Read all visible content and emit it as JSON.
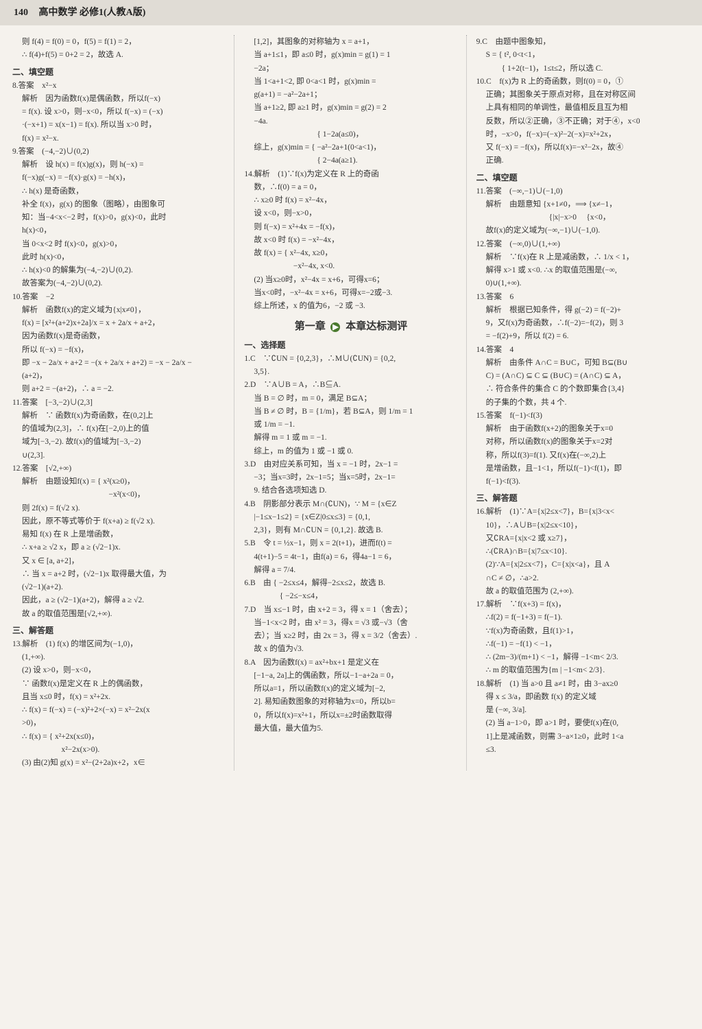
{
  "header": {
    "page_num": "140",
    "title": "高中数学 必修1(人教A版)"
  },
  "col1": {
    "l1": "则 f(4) = f(0) = 0，f(5) = f(1) = 2，",
    "l2": "∴ f(4)+f(5) = 0+2 = 2，故选 A.",
    "s1": "二、填空题",
    "a8": "8.答案　x²−x",
    "a8_1": "解析　因为函数f(x)是偶函数，所以f(−x)",
    "a8_2": "= f(x). 设 x>0，则−x<0，所以 f(−x) = (−x)",
    "a8_3": "·(−x+1) = x(x−1) = f(x). 所以当 x>0 时，",
    "a8_4": "f(x) = x²−x.",
    "a9": "9.答案　(−4,−2)∪(0,2)",
    "a9_1": "解析　设 h(x) = f(x)g(x)，则 h(−x) =",
    "a9_2": "f(−x)g(−x) = −f(x)·g(x) = −h(x)，",
    "a9_3": "∴ h(x) 是奇函数，",
    "a9_4": "补全 f(x)，g(x) 的图象（图略），由图象可",
    "a9_5": "知：当−4<x<−2 时，f(x)>0，g(x)<0，此时",
    "a9_6": "h(x)<0，",
    "a9_7": "当 0<x<2 时 f(x)<0，g(x)>0，",
    "a9_8": "此时 h(x)<0，",
    "a9_9": "∴ h(x)<0 的解集为(−4,−2)∪(0,2).",
    "a9_10": "故答案为(−4,−2)∪(0,2).",
    "a10": "10.答案　−2",
    "a10_1": "解析　函数f(x)的定义域为{x|x≠0}，",
    "a10_2": "f(x) = [x²+(a+2)x+2a]/x = x + 2a/x + a+2，",
    "a10_3": "因为函数f(x)是奇函数，",
    "a10_4": "所以 f(−x) = −f(x)，",
    "a10_5": "即 −x − 2a/x + a+2 = −(x + 2a/x + a+2) = −x − 2a/x −",
    "a10_6": "(a+2)，",
    "a10_7": "则 a+2 = −(a+2)，∴ a = −2.",
    "a11": "11.答案　[−3,−2)∪(2,3]",
    "a11_1": "解析　∵ 函数f(x)为奇函数，在(0,2]上",
    "a11_2": "的值域为(2,3]，∴ f(x)在[−2,0)上的值",
    "a11_3": "域为[−3,−2). 故f(x)的值域为[−3,−2)",
    "a11_4": "∪(2,3].",
    "a12": "12.答案　[√2,+∞)",
    "a12_1": "解析　由题设知f(x) = { x²(x≥0)，",
    "a12_1b": "　　　　　　　　　　　−x²(x<0)，",
    "a12_2": "则 2f(x) = f(√2 x).",
    "a12_3": "因此，原不等式等价于 f(x+a) ≥ f(√2 x).",
    "a12_4": "易知 f(x) 在 R 上是增函数，",
    "a12_5": "∴ x+a ≥ √2 x，即 a ≥ (√2−1)x.",
    "a12_6": "又 x ∈ [a, a+2]，",
    "a12_7": "∴ 当 x = a+2 时，(√2−1)x 取得最大值，为",
    "a12_8": "(√2−1)(a+2).",
    "a12_9": "因此，a ≥ (√2−1)(a+2)，解得 a ≥ √2.",
    "a12_10": "故 a 的取值范围是[√2,+∞).",
    "s2": "三、解答题",
    "a13": "13.解析　(1) f(x) 的增区间为(−1,0)，",
    "a13_1": "(1,+∞).",
    "a13_2": "(2) 设 x>0，则−x<0，",
    "a13_3": "∵ 函数f(x)是定义在 R 上的偶函数，",
    "a13_4": "且当 x≤0 时，f(x) = x²+2x.",
    "a13_5": "∴ f(x) = f(−x) = (−x)²+2×(−x) = x²−2x(x",
    "a13_6": ">0)，",
    "a13_7": "∴ f(x) = { x²+2x(x≤0)，",
    "a13_7b": "　　　　　x²−2x(x>0).",
    "a13_8": "(3) 由(2)知 g(x) = x²−(2+2a)x+2，x∈"
  },
  "col2": {
    "l1": "[1,2]，其图象的对称轴为 x = a+1，",
    "l2": "当 a+1≤1，即 a≤0 时，g(x)min = g(1) = 1",
    "l3": "−2a；",
    "l4": "当 1<a+1<2, 即 0<a<1 时，g(x)min =",
    "l5": "g(a+1) = −a²−2a+1；",
    "l6": "当 a+1≥2, 即 a≥1 时，g(x)min = g(2) = 2",
    "l7": "−4a.",
    "l8": "　　　　　　　　{ 1−2a(a≤0)，",
    "l9": "综上，g(x)min = { −a²−2a+1(0<a<1)，",
    "l10": "　　　　　　　　{ 2−4a(a≥1).",
    "a14": "14.解析　(1)∵f(x)为定义在 R 上的奇函",
    "a14_1": "数，∴f(0) = a = 0，",
    "a14_2": "∴ x≥0 时 f(x) = x²−4x，",
    "a14_3": "设 x<0，则−x>0，",
    "a14_4": "则 f(−x) = x²+4x = −f(x)，",
    "a14_5": "故 x<0 时 f(x) = −x²−4x，",
    "a14_6": "故 f(x) = { x²−4x, x≥0，",
    "a14_6b": "　　　　　−x²−4x, x<0.",
    "a14_7": "(2) 当x≥0时，x²−4x = x+6，可得x=6；",
    "a14_8": "当x<0时，−x²−4x = x+6，可得x=−2或−3.",
    "a14_9": "综上所述，x 的值为6，−2 或 −3.",
    "chapter": "第一章",
    "chapter2": "本章达标测评",
    "s1": "一、选择题",
    "c1": "1.C　∵∁UN = {0,2,3}，∴M∪(∁UN) = {0,2,",
    "c1_1": "3,5}.",
    "c2": "2.D　∵A∪B = A，∴B⊆A.",
    "c2_1": "当 B = ∅ 时，m = 0，满足 B⊆A；",
    "c2_2": "当 B ≠ ∅ 时，B = {1/m}，若 B⊆A，则 1/m = 1",
    "c2_3": "或 1/m = −1.",
    "c2_4": "解得 m = 1 或 m = −1.",
    "c2_5": "综上，m 的值为 1 或 −1 或 0.",
    "c3": "3.D　由对应关系可知，当 x = −1 时，2x−1 =",
    "c3_1": "−3；当x=3时，2x−1=5；当x=5时，2x−1=",
    "c3_2": "9. 结合各选项知选 D.",
    "c4": "4.B　阴影部分表示 M∩(∁UN)，∵ M = {x∈Z",
    "c4_1": "|−1≤x−1≤2} = {x∈Z|0≤x≤3} = {0,1,",
    "c4_2": "2,3}，则有 M∩∁UN = {0,1,2}. 故选 B.",
    "c5": "5.B　令 t = ½x−1，则 x = 2(t+1)，进而f(t) =",
    "c5_1": "4(t+1)−5 = 4t−1，由f(a) = 6，得4a−1 = 6，",
    "c5_2": "解得 a = 7/4.",
    "c6": "6.B　由 { −2≤x≤4，解得−2≤x≤2，故选 B.",
    "c6_1": "　　　 { −2≤−x≤4，",
    "c7": "7.D　当 x≤−1 时，由 x+2 = 3，得 x = 1（舍去）；",
    "c7_1": "当−1<x<2 时，由 x² = 3，得x = √3 或−√3（舍",
    "c7_2": "去）；当 x≥2 时，由 2x = 3，得 x = 3/2（舍去）.",
    "c7_3": "故 x 的值为√3.",
    "c8": "8.A　因为函数f(x) = ax²+bx+1 是定义在",
    "c8_1": "[−1−a, 2a]上的偶函数，所以−1−a+2a = 0，",
    "c8_2": "所以a=1，所以函数f(x)的定义域为[−2,",
    "c8_3": "2]. 易知函数图象的对称轴为x=0，所以b=",
    "c8_4": "0，所以f(x)=x²+1，所以x=±2时函数取得",
    "c8_5": "最大值，最大值为5."
  },
  "col3": {
    "c9": "9.C　由题中图象知，",
    "c9_1": "S = { t², 0<t<1，",
    "c9_2": "　　{ 1+2(t−1)，1≤t≤2，所以选 C.",
    "c10": "10.C　f(x)为 R 上的奇函数，则f(0) = 0，①",
    "c10_1": "正确；其图象关于原点对称，且在对称区间",
    "c10_2": "上具有相同的单调性，最值相反且互为相",
    "c10_3": "反数，所以②正确，③不正确；对于④，x<0",
    "c10_4": "时，−x>0，f(−x)=(−x)²−2(−x)=x²+2x，",
    "c10_5": "又 f(−x) = −f(x)，所以f(x)=−x²−2x，故④",
    "c10_6": "正确.",
    "s1": "二、填空题",
    "a11": "11.答案　(−∞,−1)∪(−1,0)",
    "a11_1": "解析　由题意知 {x+1≠0，⟹ {x≠−1，",
    "a11_2": "　　　　　　　　{|x|−x>0 　{x<0，",
    "a11_3": "故f(x)的定义域为(−∞,−1)∪(−1,0).",
    "a12": "12.答案　(−∞,0)∪(1,+∞)",
    "a12_1": "解析　∵f(x)在 R 上是减函数，∴ 1/x < 1，",
    "a12_2": "解得 x>1 或 x<0. ∴x 的取值范围是(−∞,",
    "a12_3": "0)∪(1,+∞).",
    "a13": "13.答案　6",
    "a13_1": "解析　根据已知条件，得 g(−2) = f(−2)+",
    "a13_2": "9，又f(x)为奇函数，∴f(−2)=−f(2)，则 3",
    "a13_3": "= −f(2)+9，所以 f(2) = 6.",
    "a14": "14.答案　4",
    "a14_1": "解析　由条件 A∩C = B∪C，可知 B⊆(B∪",
    "a14_2": "C) = (A∩C) ⊆ C ⊆ (B∪C) = (A∩C) ⊆ A，",
    "a14_3": "∴ 符合条件的集合 C 的个数即集合{3,4}",
    "a14_4": "的子集的个数，共 4 个.",
    "a15": "15.答案　f(−1)<f(3)",
    "a15_1": "解析　由于函数f(x+2)的图象关于x=0",
    "a15_2": "对称，所以函数f(x)的图象关于x=2对",
    "a15_3": "称，所以f(3)=f(1). 又f(x)在(−∞,2)上",
    "a15_4": "是增函数，且−1<1，所以f(−1)<f(1)，即",
    "a15_5": "f(−1)<f(3).",
    "s2": "三、解答题",
    "a16": "16.解析　(1)∵A={x|2≤x<7}，B={x|3<x<",
    "a16_1": "10}，∴A∪B={x|2≤x<10}，",
    "a16_2": "又∁RA={x|x<2 或 x≥7}，",
    "a16_3": "∴(∁RA)∩B={x|7≤x<10}.",
    "a16_4": "(2)∵A={x|2≤x<7}，C={x|x<a}，且 A",
    "a16_5": "∩C ≠ ∅，∴a>2.",
    "a16_6": "故 a 的取值范围为 (2,+∞).",
    "a17": "17.解析　∵f(x+3) = f(x)，",
    "a17_1": "∴f(2) = f(−1+3) = f(−1).",
    "a17_2": "∵f(x)为奇函数，且f(1)>1，",
    "a17_3": "∴f(−1) = −f(1) < −1，",
    "a17_4": "∴ (2m−3)/(m+1) < −1，解得 −1<m< 2/3.",
    "a17_5": "∴ m 的取值范围为{m | −1<m< 2/3}.",
    "a18": "18.解析　(1) 当 a>0 且 a≠1 时，由 3−ax≥0",
    "a18_1": "得 x ≤ 3/a，即函数 f(x) 的定义域",
    "a18_2": "是 (−∞, 3/a].",
    "a18_3": "(2) 当 a−1>0，即 a>1 时，要使f(x)在(0,",
    "a18_4": "1]上是减函数，则需 3−a×1≥0，此时 1<a",
    "a18_5": "≤3."
  }
}
